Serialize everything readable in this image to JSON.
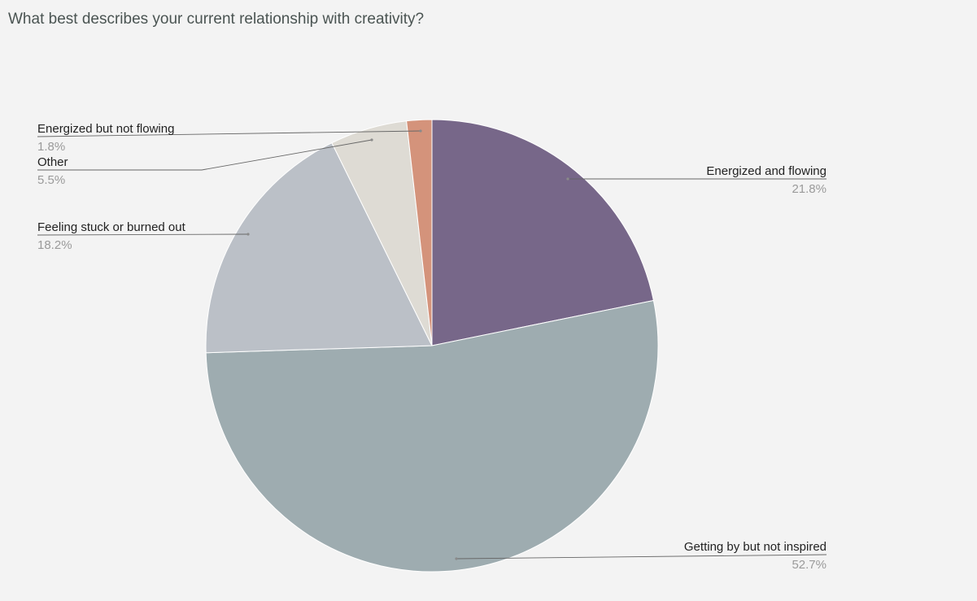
{
  "chart_data": {
    "type": "pie",
    "title": "What best describes your current relationship with creativity?",
    "slices": [
      {
        "label": "Energized and flowing",
        "value": 21.8,
        "value_label": "21.8%",
        "color": "#776789"
      },
      {
        "label": "Getting by but not inspired",
        "value": 52.7,
        "value_label": "52.7%",
        "color": "#9eacb0"
      },
      {
        "label": "Feeling stuck or burned out",
        "value": 18.2,
        "value_label": "18.2%",
        "color": "#bbc0c7"
      },
      {
        "label": "Other",
        "value": 5.5,
        "value_label": "5.5%",
        "color": "#dedbd4"
      },
      {
        "label": "Energized but not flowing",
        "value": 1.8,
        "value_label": "1.8%",
        "color": "#d4937b"
      }
    ],
    "start_angle": "top",
    "direction": "clockwise",
    "legend": "none",
    "labels": "outside with leader lines"
  }
}
